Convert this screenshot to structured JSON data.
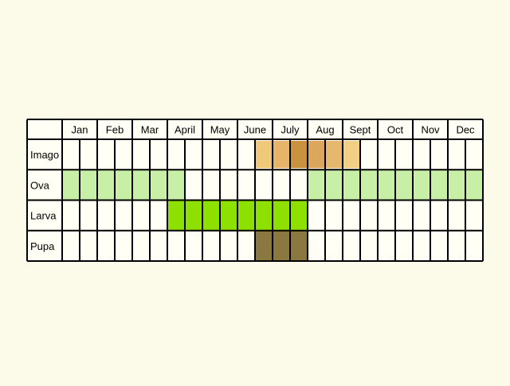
{
  "chart_data": {
    "type": "table",
    "months": [
      "Jan",
      "Feb",
      "Mar",
      "April",
      "May",
      "June",
      "July",
      "Aug",
      "Sept",
      "Oct",
      "Nov",
      "Dec"
    ],
    "halves_per_month": 2,
    "stages": [
      {
        "name": "Imago",
        "color": "#d4a55a",
        "periods": [
          {
            "start": "June late",
            "end": "June late",
            "color": "#f0c87a",
            "intensity": 0.6
          },
          {
            "start": "July early",
            "end": "July early",
            "color": "#e7b56a",
            "intensity": 0.75
          },
          {
            "start": "July late",
            "end": "July late",
            "color": "#c8923f",
            "intensity": 1.0
          },
          {
            "start": "Aug early",
            "end": "Aug early",
            "color": "#dba75c",
            "intensity": 0.85
          },
          {
            "start": "Aug late",
            "end": "Aug late",
            "color": "#e6b86e",
            "intensity": 0.75
          },
          {
            "start": "Sept early",
            "end": "Sept early",
            "color": "#f2cf85",
            "intensity": 0.55
          }
        ]
      },
      {
        "name": "Ova",
        "color": "#c7f0a6",
        "periods": [
          {
            "start": "Jan early",
            "end": "Mar late"
          },
          {
            "start": "April early",
            "end": "April early"
          },
          {
            "start": "Aug early",
            "end": "Dec late"
          }
        ]
      },
      {
        "name": "Larva",
        "color": "#8ee000",
        "periods": [
          {
            "start": "April early",
            "end": "July late"
          }
        ]
      },
      {
        "name": "Pupa",
        "color": "#8a7840",
        "periods": [
          {
            "start": "June late",
            "end": "July late"
          }
        ]
      }
    ],
    "grid": true,
    "colors": {
      "background": "#fcfbea",
      "cell_empty": "#fffff5",
      "grid_line": "#000000"
    }
  }
}
